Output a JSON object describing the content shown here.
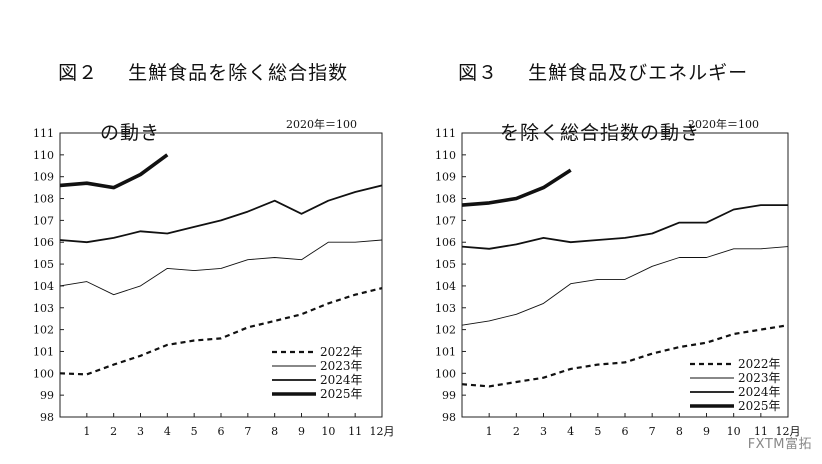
{
  "chart_data": [
    {
      "type": "line",
      "figure_label": "図２",
      "title_line1": "生鮮食品を除く総合指数",
      "title_line2": "の動き",
      "unit_note": "2020年＝100",
      "x_tick_labels": [
        "1",
        "2",
        "3",
        "4",
        "5",
        "6",
        "7",
        "8",
        "9",
        "10",
        "11",
        "12月"
      ],
      "ylim": [
        98,
        111
      ],
      "yticks": [
        98,
        99,
        100,
        101,
        102,
        103,
        104,
        105,
        106,
        107,
        108,
        109,
        110,
        111
      ],
      "series": [
        {
          "name": "2022年",
          "style": "dashed",
          "color": "#111111",
          "points": [
            [
              0,
              100.0
            ],
            [
              1,
              99.95
            ],
            [
              2,
              100.4
            ],
            [
              3,
              100.8
            ],
            [
              4,
              101.3
            ],
            [
              5,
              101.5
            ],
            [
              6,
              101.6
            ],
            [
              7,
              102.1
            ],
            [
              8,
              102.4
            ],
            [
              9,
              102.7
            ],
            [
              10,
              103.2
            ],
            [
              11,
              103.6
            ],
            [
              12,
              103.9
            ]
          ]
        },
        {
          "name": "2023年",
          "style": "thin",
          "color": "#111111",
          "points": [
            [
              0,
              104.0
            ],
            [
              1,
              104.2
            ],
            [
              2,
              103.6
            ],
            [
              3,
              104.0
            ],
            [
              4,
              104.8
            ],
            [
              5,
              104.7
            ],
            [
              6,
              104.8
            ],
            [
              7,
              105.2
            ],
            [
              8,
              105.3
            ],
            [
              9,
              105.2
            ],
            [
              10,
              106.0
            ],
            [
              11,
              106.0
            ],
            [
              12,
              106.1
            ]
          ]
        },
        {
          "name": "2024年",
          "style": "medium",
          "color": "#111111",
          "points": [
            [
              0,
              106.1
            ],
            [
              1,
              106.0
            ],
            [
              2,
              106.2
            ],
            [
              3,
              106.5
            ],
            [
              4,
              106.4
            ],
            [
              5,
              106.7
            ],
            [
              6,
              107.0
            ],
            [
              7,
              107.4
            ],
            [
              8,
              107.9
            ],
            [
              9,
              107.3
            ],
            [
              10,
              107.9
            ],
            [
              11,
              108.3
            ],
            [
              12,
              108.6
            ]
          ]
        },
        {
          "name": "2025年",
          "style": "thick",
          "color": "#111111",
          "points": [
            [
              0,
              108.6
            ],
            [
              1,
              108.7
            ],
            [
              2,
              108.5
            ],
            [
              3,
              109.1
            ],
            [
              4,
              110.0
            ]
          ]
        }
      ]
    },
    {
      "type": "line",
      "figure_label": "図３",
      "title_line1": "生鮮食品及びエネルギー",
      "title_line2": "を除く総合指数の動き",
      "unit_note": "2020年＝100",
      "x_tick_labels": [
        "1",
        "2",
        "3",
        "4",
        "5",
        "6",
        "7",
        "8",
        "9",
        "10",
        "11",
        "12月"
      ],
      "ylim": [
        98,
        111
      ],
      "yticks": [
        98,
        99,
        100,
        101,
        102,
        103,
        104,
        105,
        106,
        107,
        108,
        109,
        110,
        111
      ],
      "series": [
        {
          "name": "2022年",
          "style": "dashed",
          "color": "#111111",
          "points": [
            [
              0,
              99.5
            ],
            [
              1,
              99.4
            ],
            [
              2,
              99.6
            ],
            [
              3,
              99.8
            ],
            [
              4,
              100.2
            ],
            [
              5,
              100.4
            ],
            [
              6,
              100.5
            ],
            [
              7,
              100.9
            ],
            [
              8,
              101.2
            ],
            [
              9,
              101.4
            ],
            [
              10,
              101.8
            ],
            [
              11,
              102.0
            ],
            [
              12,
              102.2
            ]
          ]
        },
        {
          "name": "2023年",
          "style": "thin",
          "color": "#111111",
          "points": [
            [
              0,
              102.2
            ],
            [
              1,
              102.4
            ],
            [
              2,
              102.7
            ],
            [
              3,
              103.2
            ],
            [
              4,
              104.1
            ],
            [
              5,
              104.3
            ],
            [
              6,
              104.3
            ],
            [
              7,
              104.9
            ],
            [
              8,
              105.3
            ],
            [
              9,
              105.3
            ],
            [
              10,
              105.7
            ],
            [
              11,
              105.7
            ],
            [
              12,
              105.8
            ]
          ]
        },
        {
          "name": "2024年",
          "style": "medium",
          "color": "#111111",
          "points": [
            [
              0,
              105.8
            ],
            [
              1,
              105.7
            ],
            [
              2,
              105.9
            ],
            [
              3,
              106.2
            ],
            [
              4,
              106.0
            ],
            [
              5,
              106.1
            ],
            [
              6,
              106.2
            ],
            [
              7,
              106.4
            ],
            [
              8,
              106.9
            ],
            [
              9,
              106.9
            ],
            [
              10,
              107.5
            ],
            [
              11,
              107.7
            ],
            [
              12,
              107.7
            ]
          ]
        },
        {
          "name": "2025年",
          "style": "thick",
          "color": "#111111",
          "points": [
            [
              0,
              107.7
            ],
            [
              1,
              107.8
            ],
            [
              2,
              108.0
            ],
            [
              3,
              108.5
            ],
            [
              4,
              109.3
            ]
          ]
        }
      ]
    }
  ],
  "watermark": "FXTM富拓"
}
